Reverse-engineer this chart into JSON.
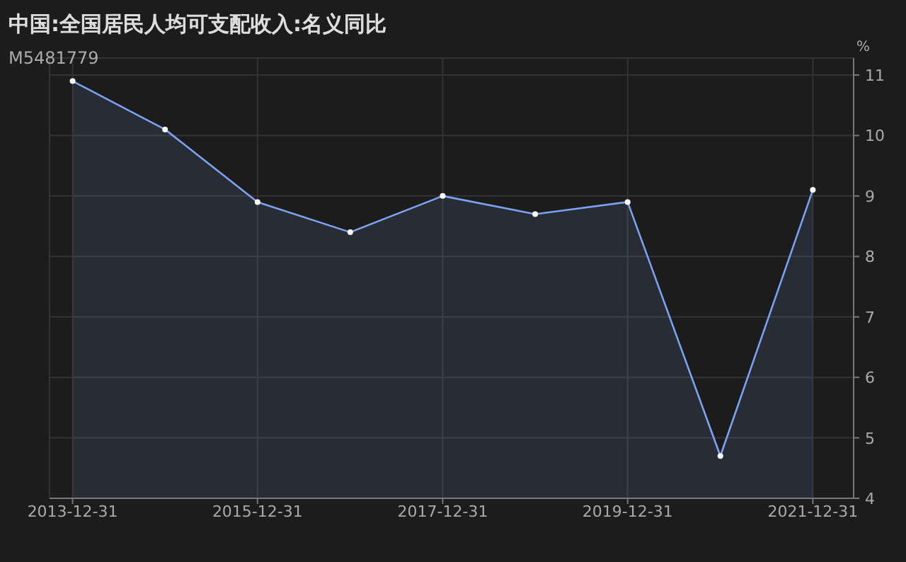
{
  "chart_data": {
    "type": "area",
    "title": "中国:全国居民人均可支配收入:名义同比",
    "subtitle": "M5481779",
    "ylabel": "%",
    "x": [
      "2013-12-31",
      "2014-12-31",
      "2015-12-31",
      "2016-12-31",
      "2017-12-31",
      "2018-12-31",
      "2019-12-31",
      "2020-12-31",
      "2021-12-31"
    ],
    "series": [
      {
        "color": "#7aa2f0",
        "values": [
          10.9,
          10.1,
          8.9,
          8.4,
          9.0,
          8.7,
          8.9,
          4.7,
          9.1
        ]
      }
    ],
    "xlim": [
      "2013-10-01",
      "2022-06-10"
    ],
    "xticks": [
      "2013-12-31",
      "2015-12-31",
      "2017-12-31",
      "2019-12-31",
      "2021-12-31"
    ],
    "ylim": [
      4,
      11
    ],
    "yticks": [
      4,
      5,
      6,
      7,
      8,
      9,
      10,
      11
    ],
    "grid": true,
    "marker": "circle"
  }
}
